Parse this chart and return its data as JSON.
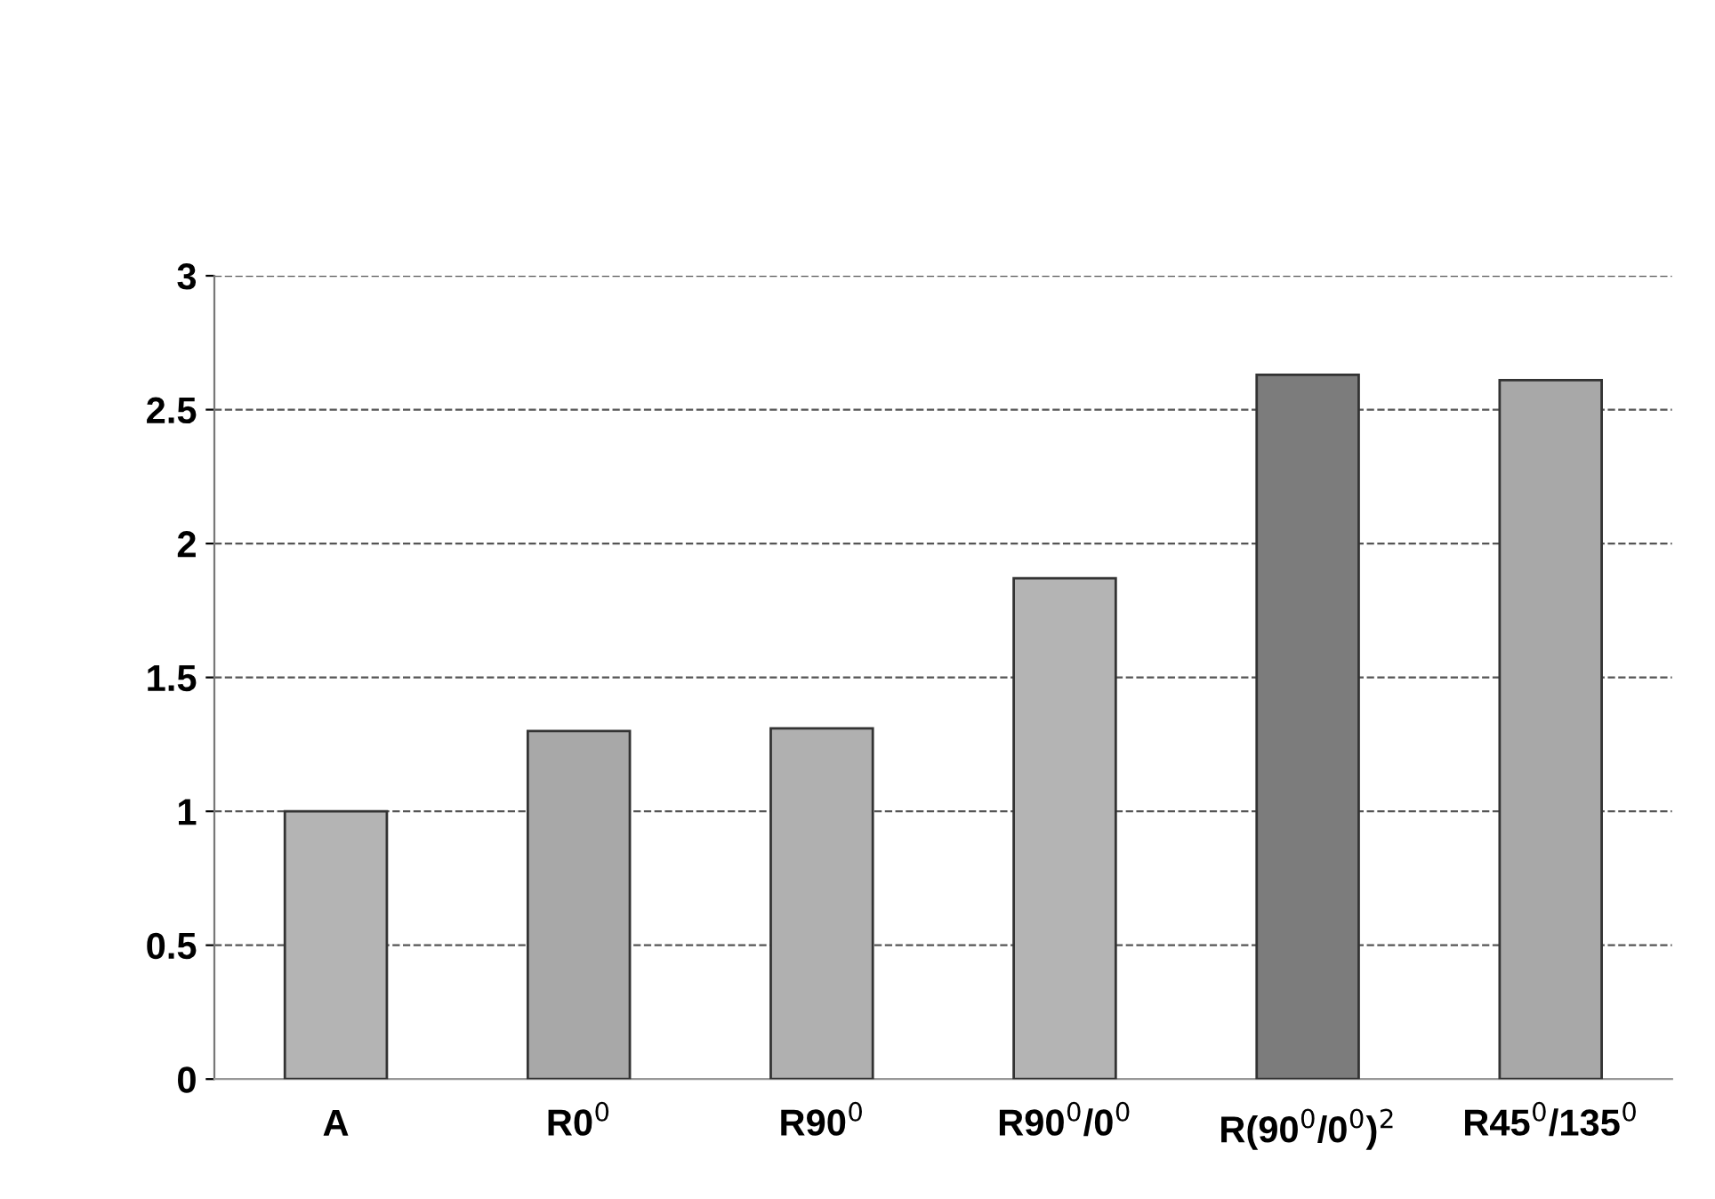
{
  "chart_data": {
    "type": "bar",
    "categories": [
      "A",
      "R0$^{0}$",
      "R90$^{0}$",
      "R90$^{0}$/0$^{0}$",
      "R(90$^{0}$/0$^{0}$)$^{2}$",
      "R45$^{0}$/135$^{0}$"
    ],
    "values": [
      1.0,
      1.3,
      1.31,
      1.87,
      2.63,
      2.61
    ],
    "colors": [
      "#b4b4b4",
      "#a8a8a8",
      "#b0b0b0",
      "#b4b4b4",
      "#7c7c7c",
      "#a8a8a8"
    ],
    "ylim": [
      0,
      3
    ],
    "yticks": [
      0,
      0.5,
      1,
      1.5,
      2,
      2.5,
      3
    ],
    "grid": "y",
    "line_style": "dashed"
  }
}
